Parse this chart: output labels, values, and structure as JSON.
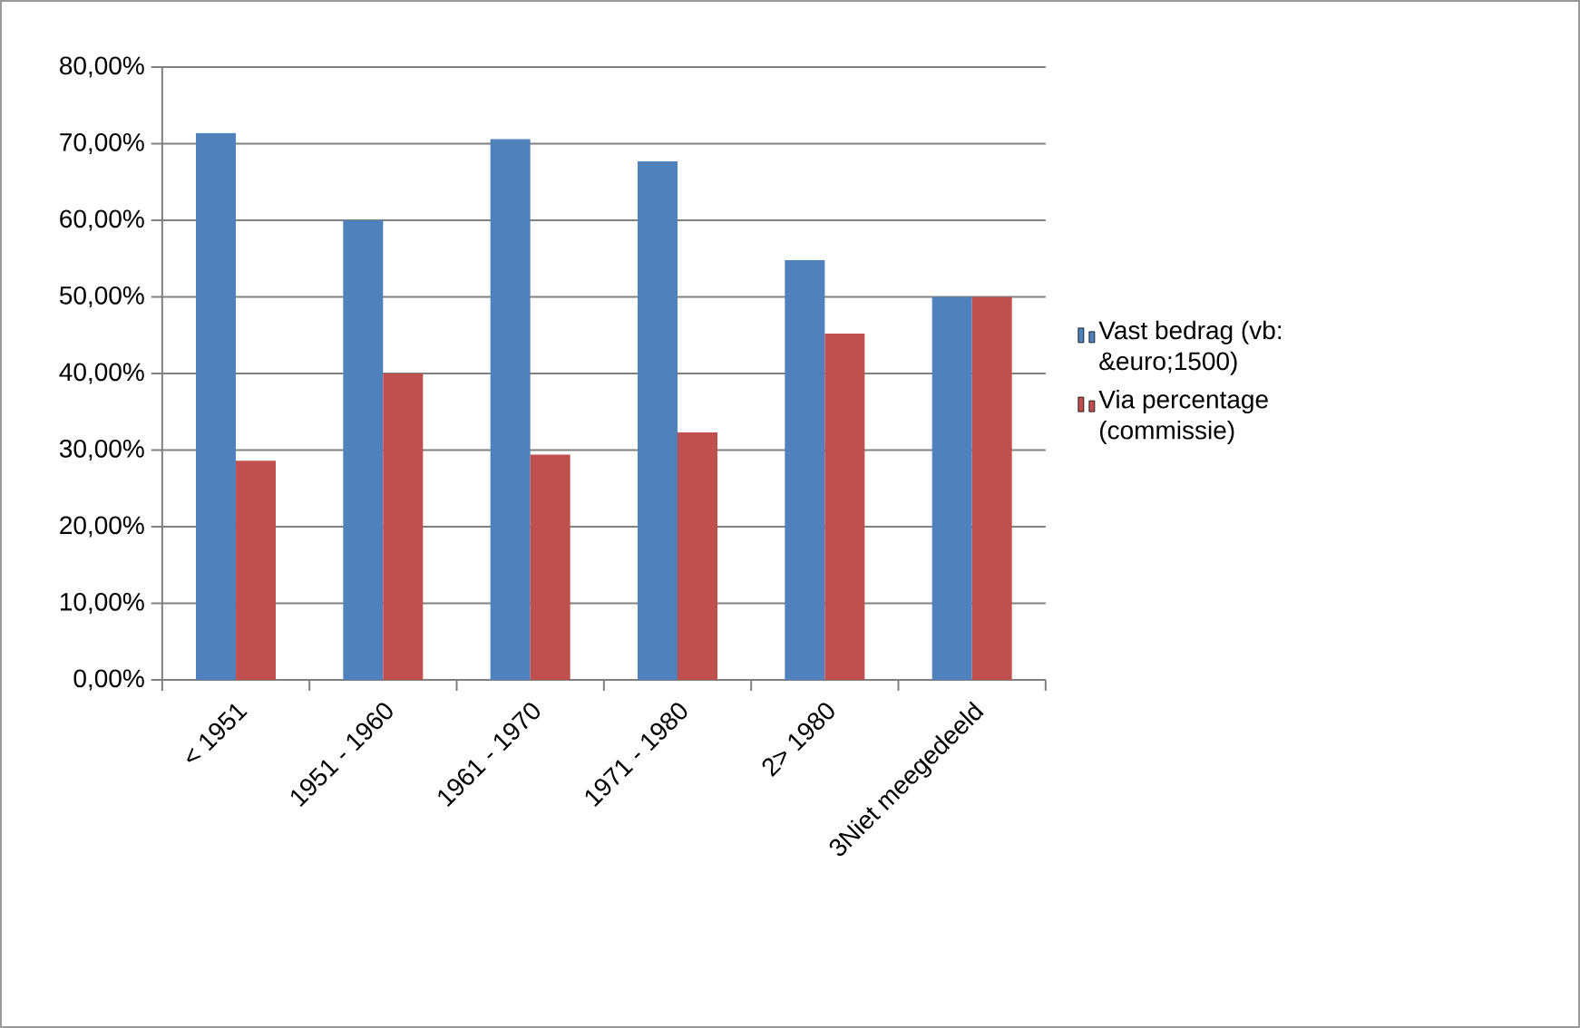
{
  "chart_data": {
    "type": "bar",
    "categories": [
      "< 1951",
      "1951 - 1960",
      "1961 - 1970",
      "1971 - 1980",
      "2> 1980",
      "3Niet meegedeeld"
    ],
    "series": [
      {
        "name": "Vast bedrag (vb: &euro;1500)",
        "color": "#4f81bd",
        "values": [
          71.4,
          60.0,
          70.6,
          67.7,
          54.8,
          50.0
        ]
      },
      {
        "name": "Via percentage (commissie)",
        "color": "#c0504d",
        "values": [
          28.6,
          40.0,
          29.4,
          32.3,
          45.2,
          50.0
        ]
      }
    ],
    "ylim": [
      0,
      80
    ],
    "yticks": [
      {
        "value": 0,
        "label": "0,00%"
      },
      {
        "value": 10,
        "label": "10,00%"
      },
      {
        "value": 20,
        "label": "20,00%"
      },
      {
        "value": 30,
        "label": "30,00%"
      },
      {
        "value": 40,
        "label": "40,00%"
      },
      {
        "value": 50,
        "label": "50,00%"
      },
      {
        "value": 60,
        "label": "60,00%"
      },
      {
        "value": 70,
        "label": "70,00%"
      },
      {
        "value": 80,
        "label": "80,00%"
      }
    ],
    "grid": "y",
    "legend": "right"
  }
}
